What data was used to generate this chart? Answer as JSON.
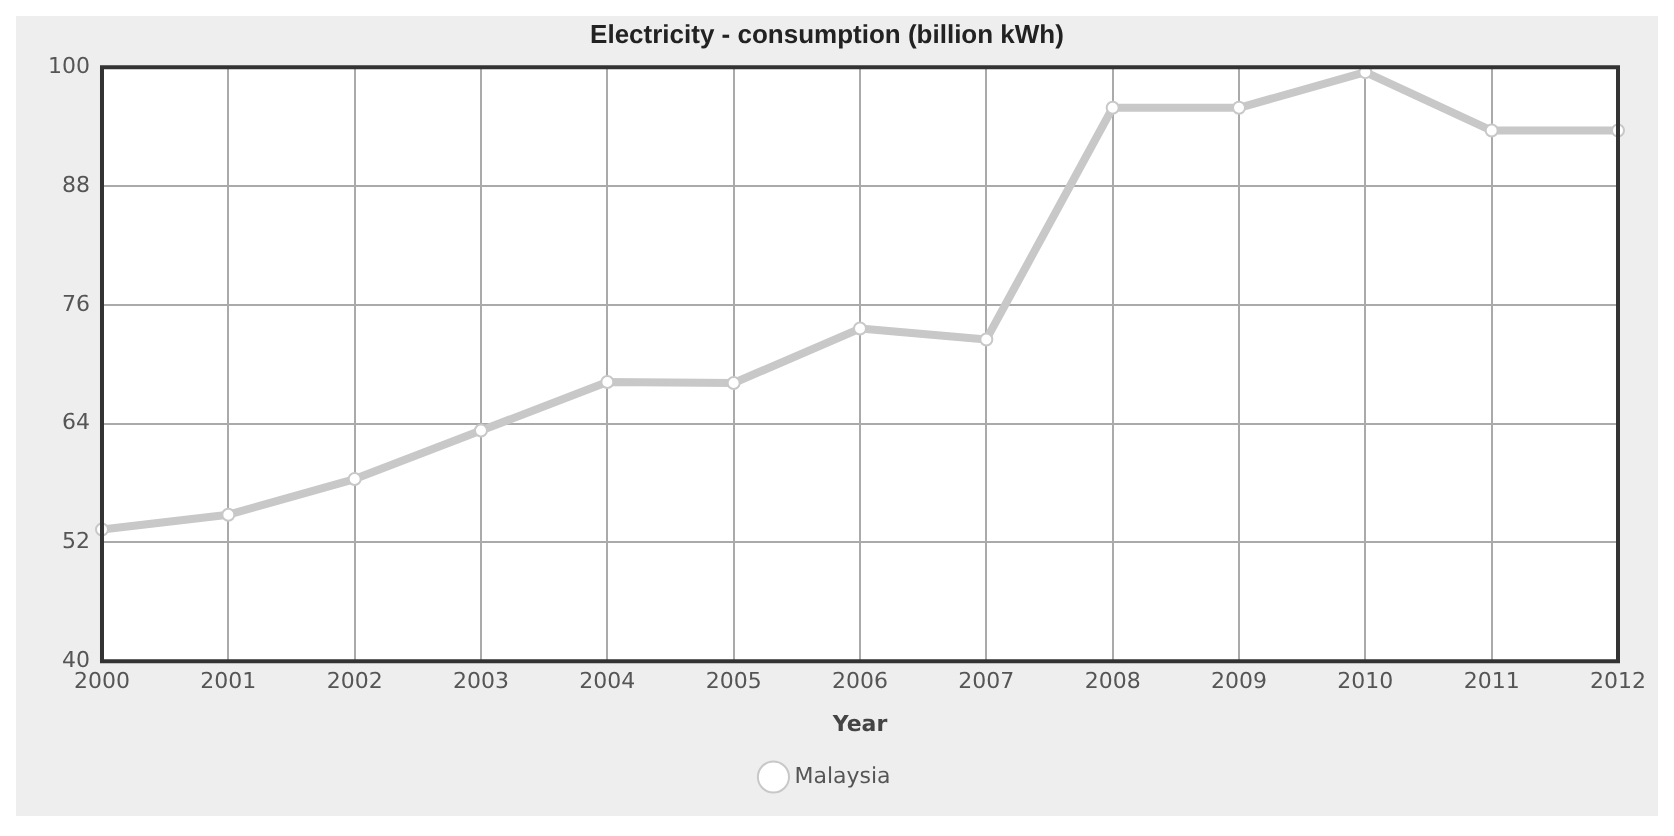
{
  "chart_data": {
    "type": "line",
    "title": "Electricity - consumption (billion kWh)",
    "xlabel": "Year",
    "categories": [
      "2000",
      "2001",
      "2002",
      "2003",
      "2004",
      "2005",
      "2006",
      "2007",
      "2008",
      "2009",
      "2010",
      "2011",
      "2012"
    ],
    "series": [
      {
        "name": "Malaysia",
        "color": "#c8c8c8",
        "values": [
          53.3,
          54.8,
          58.4,
          63.3,
          68.2,
          68.1,
          73.6,
          72.5,
          95.9,
          95.9,
          99.5,
          93.6,
          93.6
        ]
      }
    ],
    "ylim": [
      40,
      100
    ],
    "yticks": [
      40,
      52,
      64,
      76,
      88,
      100
    ],
    "grid": true,
    "legend": "bottom",
    "marker": "circle"
  }
}
